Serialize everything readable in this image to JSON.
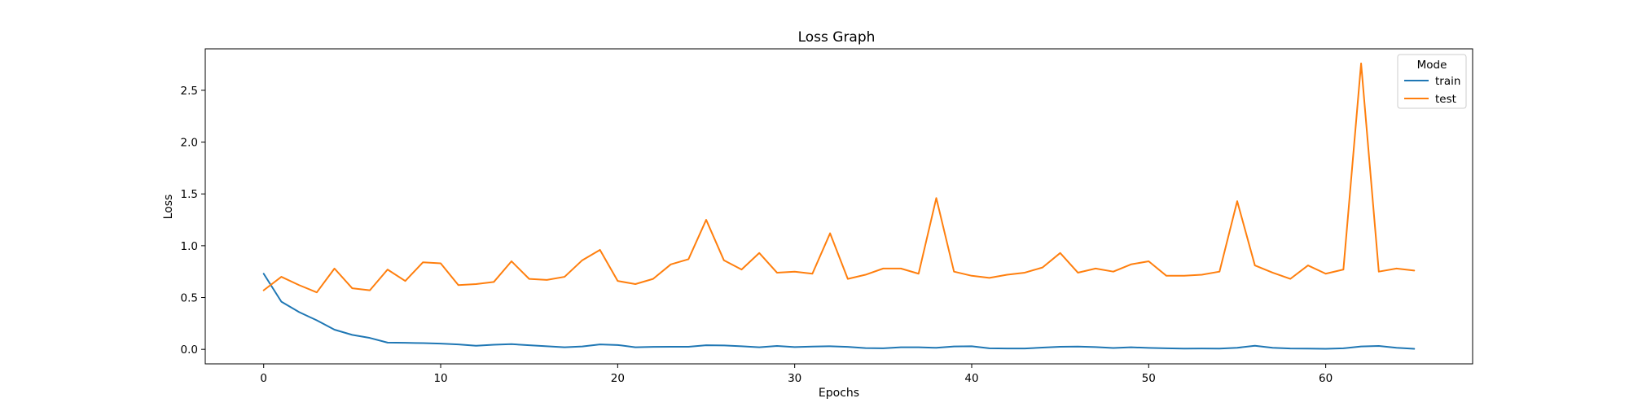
{
  "chart_data": {
    "type": "line",
    "title": "Loss Graph",
    "xlabel": "Epochs",
    "ylabel": "Loss",
    "xlim": [
      -3.3,
      68.3
    ],
    "ylim": [
      -0.14,
      2.9
    ],
    "x_ticks": [
      0,
      10,
      20,
      30,
      40,
      50,
      60
    ],
    "y_ticks": [
      0.0,
      0.5,
      1.0,
      1.5,
      2.0,
      2.5
    ],
    "x_tick_labels": [
      "0",
      "10",
      "20",
      "30",
      "40",
      "50",
      "60"
    ],
    "y_tick_labels": [
      "0.0",
      "0.5",
      "1.0",
      "1.5",
      "2.0",
      "2.5"
    ],
    "grid": false,
    "legend": {
      "title": "Mode",
      "position": "top-right"
    },
    "x": [
      0,
      1,
      2,
      3,
      4,
      5,
      6,
      7,
      8,
      9,
      10,
      11,
      12,
      13,
      14,
      15,
      16,
      17,
      18,
      19,
      20,
      21,
      22,
      23,
      24,
      25,
      26,
      27,
      28,
      29,
      30,
      31,
      32,
      33,
      34,
      35,
      36,
      37,
      38,
      39,
      40,
      41,
      42,
      43,
      44,
      45,
      46,
      47,
      48,
      49,
      50,
      51,
      52,
      53,
      54,
      55,
      56,
      57,
      58,
      59,
      60,
      61,
      62,
      63,
      64,
      65
    ],
    "series": [
      {
        "name": "train",
        "color": "#1f77b4",
        "values": [
          0.73,
          0.46,
          0.36,
          0.28,
          0.19,
          0.14,
          0.11,
          0.065,
          0.063,
          0.06,
          0.055,
          0.048,
          0.035,
          0.045,
          0.05,
          0.04,
          0.03,
          0.02,
          0.028,
          0.048,
          0.042,
          0.02,
          0.024,
          0.025,
          0.025,
          0.04,
          0.038,
          0.03,
          0.02,
          0.033,
          0.022,
          0.027,
          0.03,
          0.024,
          0.012,
          0.01,
          0.02,
          0.02,
          0.015,
          0.028,
          0.03,
          0.01,
          0.008,
          0.008,
          0.017,
          0.025,
          0.027,
          0.022,
          0.013,
          0.02,
          0.014,
          0.01,
          0.007,
          0.008,
          0.007,
          0.015,
          0.035,
          0.015,
          0.008,
          0.007,
          0.005,
          0.01,
          0.028,
          0.033,
          0.015,
          0.005
        ]
      },
      {
        "name": "test",
        "color": "#ff7f0e",
        "values": [
          0.57,
          0.7,
          0.62,
          0.55,
          0.78,
          0.59,
          0.57,
          0.77,
          0.66,
          0.84,
          0.83,
          0.62,
          0.63,
          0.65,
          0.85,
          0.68,
          0.67,
          0.7,
          0.86,
          0.96,
          0.66,
          0.63,
          0.68,
          0.82,
          0.87,
          1.25,
          0.86,
          0.77,
          0.93,
          0.74,
          0.75,
          0.73,
          1.12,
          0.68,
          0.72,
          0.78,
          0.78,
          0.73,
          1.46,
          0.75,
          0.71,
          0.69,
          0.72,
          0.74,
          0.79,
          0.93,
          0.74,
          0.78,
          0.75,
          0.82,
          0.85,
          0.71,
          0.71,
          0.72,
          0.75,
          1.43,
          0.81,
          0.74,
          0.68,
          0.81,
          0.73,
          0.77,
          2.76,
          0.75,
          0.78,
          0.76
        ]
      }
    ]
  }
}
